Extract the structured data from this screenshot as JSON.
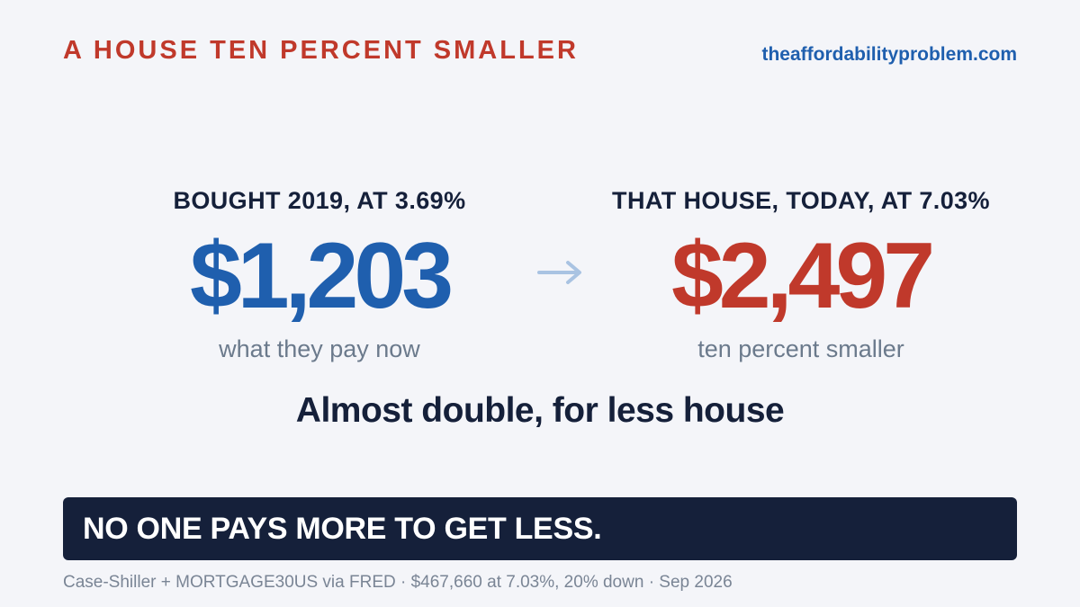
{
  "header": {
    "kicker": "A HOUSE TEN PERCENT SMALLER",
    "site": "theaffordabilityproblem.com"
  },
  "comparison": {
    "left": {
      "label": "BOUGHT 2019, AT 3.69%",
      "value": "$1,203",
      "caption": "what they pay now",
      "color": "#1f5fae"
    },
    "arrow_icon": "arrow-right-icon",
    "right": {
      "label": "THAT HOUSE, TODAY, AT 7.03%",
      "value": "$2,497",
      "caption": "ten percent smaller",
      "color": "#c0392b"
    }
  },
  "headline": "Almost double, for less house",
  "banner": {
    "text": "NO ONE PAYS MORE TO GET LESS."
  },
  "source": "Case-Shiller + MORTGAGE30US via FRED · $467,660 at 7.03%, 20% down · Sep 2026",
  "colors": {
    "background": "#f4f5f9",
    "accent_red": "#c0392b",
    "accent_blue": "#1f5fae",
    "navy": "#15203a",
    "muted": "#6b7a8c",
    "arrow": "#a9c3e2"
  }
}
